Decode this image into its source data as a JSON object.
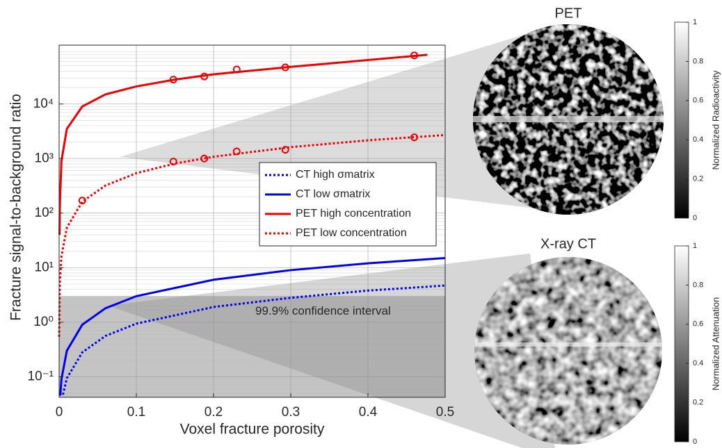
{
  "chart_data": [
    {
      "type": "line",
      "xlabel": "Voxel fracture porosity",
      "ylabel": "Fracture signal-to-background ratio",
      "xlim": [
        0,
        0.5
      ],
      "xticks": [
        0,
        0.1,
        0.2,
        0.3,
        0.4,
        0.5
      ],
      "ylim": [
        0.042,
        120000
      ],
      "log_y": true,
      "grid": true,
      "yticks": [
        {
          "value": 0.1,
          "label": "10⁻¹"
        },
        {
          "value": 1,
          "label": "10⁰"
        },
        {
          "value": 10,
          "label": "10¹"
        },
        {
          "value": 100,
          "label": "10²"
        },
        {
          "value": 1000,
          "label": "10³"
        },
        {
          "value": 10000,
          "label": "10⁴"
        }
      ],
      "confidence_band": {
        "upper": 3,
        "label": "99.9% confidence interval"
      },
      "series": [
        {
          "name": "CT high σmatrix",
          "color": "#0000ee",
          "style": "dotted",
          "x": [
            0.005,
            0.01,
            0.03,
            0.06,
            0.1,
            0.2,
            0.3,
            0.4,
            0.5
          ],
          "values": [
            0.047,
            0.094,
            0.28,
            0.56,
            0.94,
            1.9,
            2.8,
            3.8,
            4.7
          ]
        },
        {
          "name": "CT low σmatrix",
          "color": "#0000ee",
          "style": "solid",
          "x": [
            0.0015,
            0.003,
            0.01,
            0.03,
            0.06,
            0.1,
            0.2,
            0.3,
            0.4,
            0.5
          ],
          "values": [
            0.045,
            0.09,
            0.3,
            0.9,
            1.8,
            3,
            6,
            9,
            12,
            15
          ]
        },
        {
          "name": "PET high concentration",
          "color": "#ee0000",
          "style": "solid",
          "x": [
            0.0005,
            0.001,
            0.003,
            0.01,
            0.03,
            0.06,
            0.1,
            0.15,
            0.2,
            0.3,
            0.4,
            0.477
          ],
          "values": [
            40,
            150,
            900,
            3500,
            9000,
            15000,
            21000,
            28000,
            35000,
            48000,
            64000,
            80000
          ],
          "markers": {
            "x": [
              0.148,
              0.188,
              0.23,
              0.293,
              0.46
            ],
            "values": [
              28000,
              32000,
              43000,
              47000,
              78000
            ]
          }
        },
        {
          "name": "PET low concentration",
          "color": "#ee0000",
          "style": "dotted",
          "x": [
            0.0001,
            0.001,
            0.003,
            0.01,
            0.03,
            0.06,
            0.1,
            0.15,
            0.2,
            0.3,
            0.4,
            0.5
          ],
          "values": [
            0.54,
            5.4,
            16,
            54,
            162,
            320,
            540,
            810,
            1080,
            1620,
            2160,
            2700
          ],
          "markers": {
            "x": [
              0.03,
              0.148,
              0.188,
              0.23,
              0.293,
              0.46
            ],
            "values": [
              170,
              880,
              1000,
              1350,
              1450,
              2450
            ]
          }
        }
      ]
    },
    {
      "type": "image",
      "title": "PET",
      "colorbar": {
        "label": "Normalized Radioactivity",
        "lim": [
          0,
          1
        ],
        "ticks": [
          0,
          0.2,
          0.4,
          0.6,
          0.8,
          1
        ]
      }
    },
    {
      "type": "image",
      "title": "X-ray CT",
      "colorbar": {
        "label": "Normalized Attenuation",
        "lim": [
          0,
          1
        ],
        "ticks": [
          0,
          0.2,
          0.4,
          0.6,
          0.8,
          1
        ]
      }
    }
  ]
}
